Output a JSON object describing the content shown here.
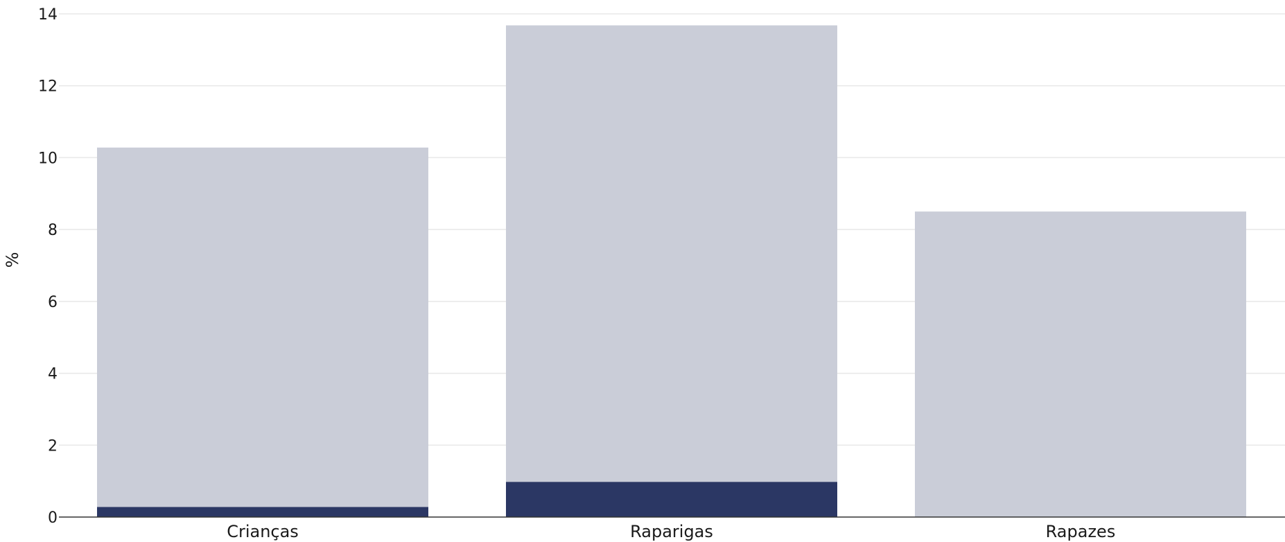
{
  "chart_data": {
    "type": "bar",
    "stacked": true,
    "categories": [
      "Crianças",
      "Raparigas",
      "Rapazes"
    ],
    "series": [
      {
        "values": [
          0.28,
          0.98,
          0.0
        ],
        "color": "#2b3764"
      },
      {
        "values": [
          10.0,
          12.7,
          8.5
        ],
        "color": "#cacdd8"
      }
    ],
    "ylabel": "%",
    "ylim": [
      0,
      14
    ],
    "yticks": [
      "0",
      "2",
      "4",
      "6",
      "8",
      "10",
      "12",
      "14"
    ],
    "grid": true,
    "grid_color": "#e8e8e8",
    "axis_color": "#333333"
  }
}
